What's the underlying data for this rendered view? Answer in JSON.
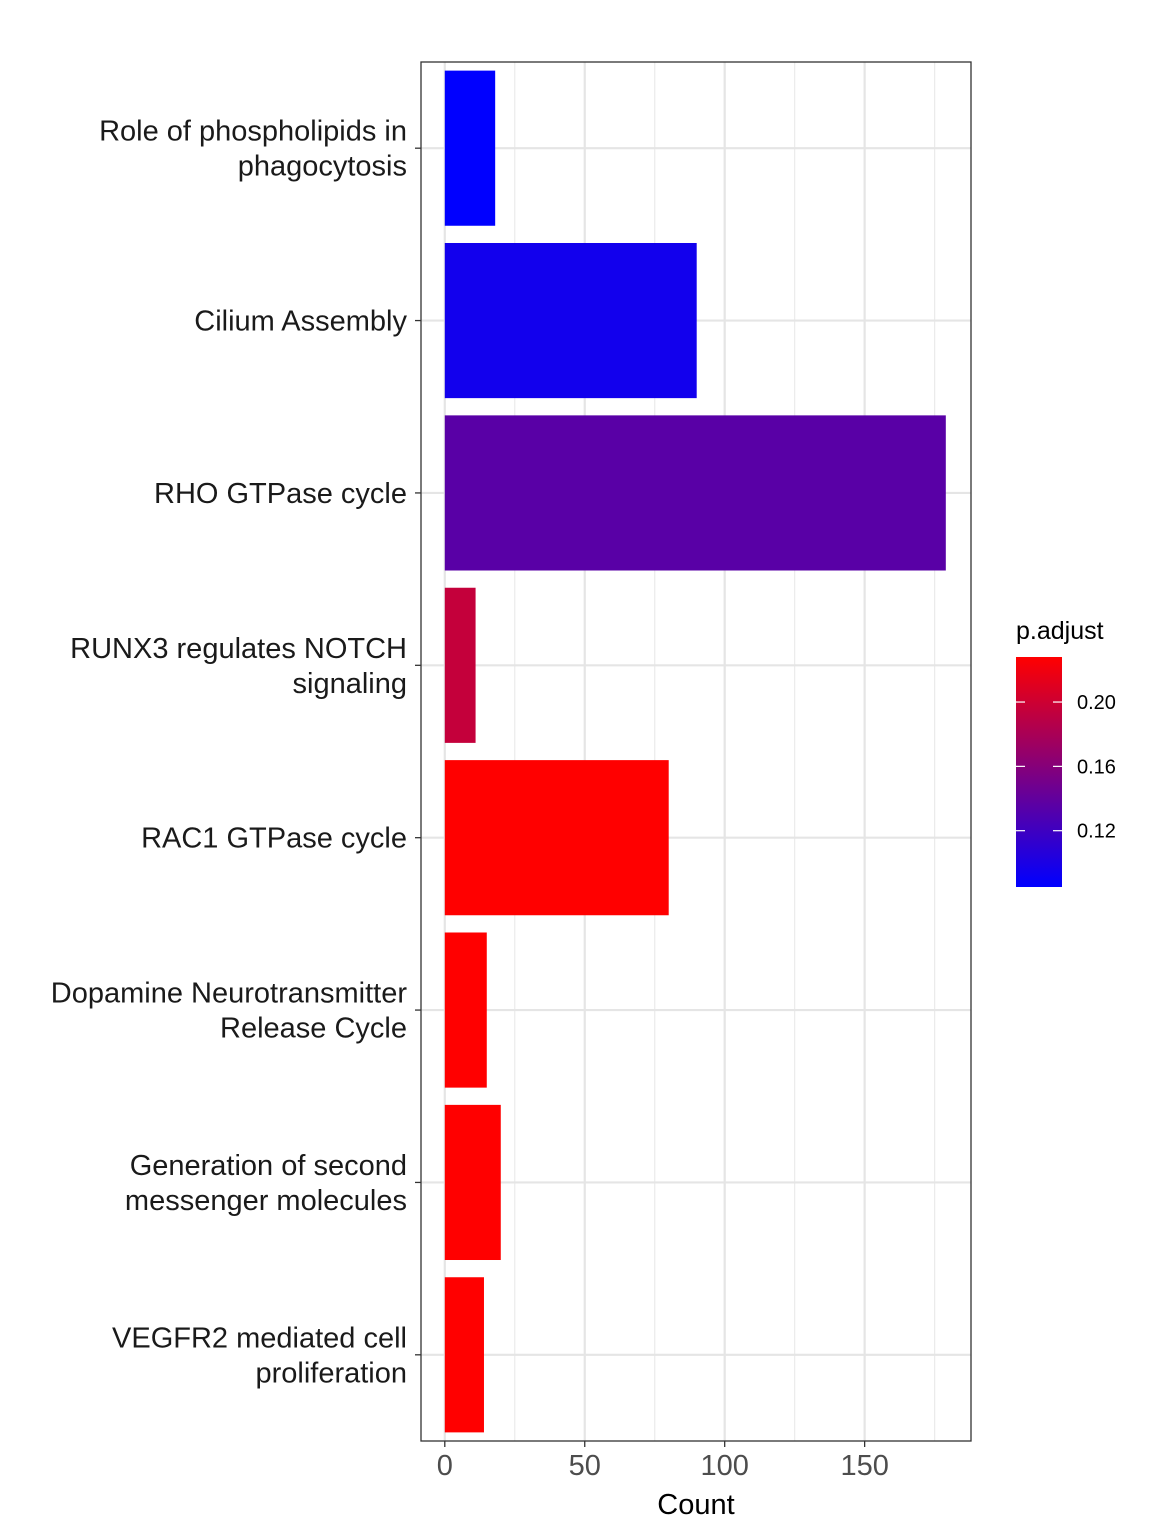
{
  "chart_data": {
    "type": "bar",
    "orientation": "horizontal",
    "categories": [
      [
        "Role of phospholipids in",
        "phagocytosis"
      ],
      [
        "Cilium Assembly"
      ],
      [
        "RHO GTPase cycle"
      ],
      [
        "RUNX3 regulates NOTCH",
        "signaling"
      ],
      [
        "RAC1 GTPase cycle"
      ],
      [
        "Dopamine Neurotransmitter",
        "Release Cycle"
      ],
      [
        "Generation of second",
        "messenger molecules"
      ],
      [
        "VEGFR2 mediated cell",
        "proliferation"
      ]
    ],
    "values": [
      18,
      90,
      179,
      11,
      80,
      15,
      20,
      14
    ],
    "p_adjust": [
      0.085,
      0.095,
      0.135,
      0.195,
      0.228,
      0.228,
      0.228,
      0.228
    ],
    "xlabel": "Count",
    "ylabel": "",
    "xlim": [
      -8.5,
      188
    ],
    "xticks": [
      0,
      50,
      100,
      150
    ],
    "xtick_labels": [
      "0",
      "50",
      "100",
      "150"
    ],
    "grid": true,
    "legend": {
      "title": "p.adjust",
      "placement": "right",
      "range": [
        0.085,
        0.228
      ],
      "ticks": [
        0.12,
        0.16,
        0.2
      ],
      "tick_labels": [
        "0.12",
        "0.16",
        "0.20"
      ],
      "low_color": "#0000ff",
      "high_color": "#ff0000"
    }
  }
}
